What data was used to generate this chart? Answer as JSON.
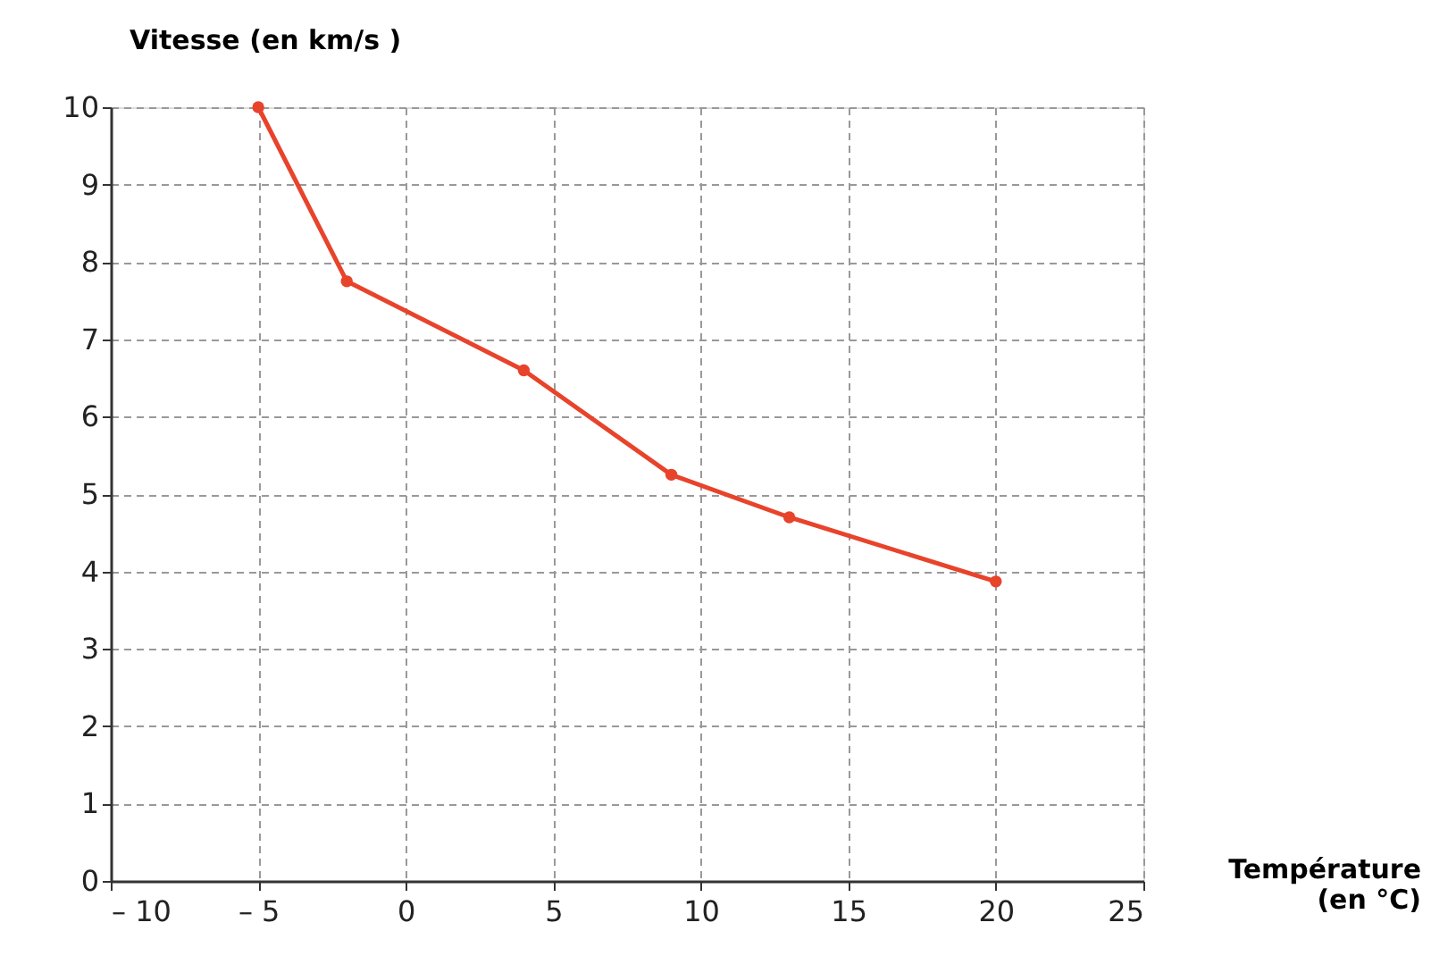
{
  "chart_data": {
    "type": "line",
    "xlabel": "Température (en °C)",
    "ylabel": "Vitesse (en km/s )",
    "x": [
      -5,
      -2,
      4,
      9,
      13,
      20
    ],
    "series": [
      {
        "color": "#e8432b",
        "values": [
          10,
          7.75,
          6.6,
          5.25,
          4.7,
          3.87
        ]
      }
    ],
    "xlim": [
      -10,
      25
    ],
    "ylim": [
      0,
      10
    ],
    "xticks": [
      {
        "value": -10,
        "label": "– 10"
      },
      {
        "value": -5,
        "label": "– 5"
      },
      0,
      5,
      10,
      15,
      20,
      25
    ],
    "yticks": [
      0,
      1,
      2,
      3,
      4,
      5,
      6,
      7,
      8,
      9,
      10
    ],
    "grid": true,
    "marker": "circle",
    "line_style": "solid"
  }
}
